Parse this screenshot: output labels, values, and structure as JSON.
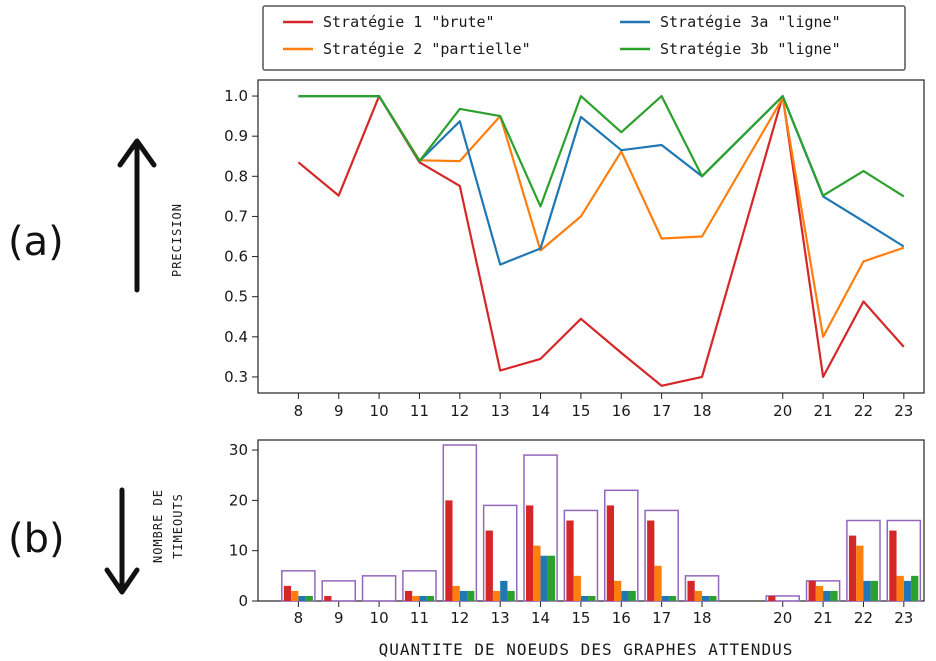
{
  "chart_data": [
    {
      "type": "line",
      "panel_label": "(a)",
      "ylabel": "PRECISION",
      "ylim": [
        0.26,
        1.04
      ],
      "yticks": [
        "0.3",
        "0.4",
        "0.5",
        "0.6",
        "0.7",
        "0.8",
        "0.9",
        "1.0"
      ],
      "x": [
        8,
        9,
        10,
        11,
        12,
        13,
        14,
        15,
        16,
        17,
        18,
        20,
        21,
        22,
        23
      ],
      "xlim": [
        7.0,
        23.5
      ],
      "grid": false,
      "legend_position": "top (above plot, two columns)",
      "series": [
        {
          "name": "Stratégie 1 \"brute\"",
          "color": "#d62728",
          "values": [
            0.835,
            0.752,
            1.0,
            0.835,
            0.776,
            0.316,
            0.345,
            0.445,
            0.36,
            0.278,
            0.3,
            1.0,
            0.3,
            0.488,
            0.375
          ]
        },
        {
          "name": "Stratégie 2 \"partielle\"",
          "color": "#ff7f0e",
          "values": [
            null,
            null,
            1.0,
            0.84,
            0.838,
            0.95,
            0.615,
            0.7,
            0.862,
            0.645,
            0.65,
            0.995,
            0.4,
            0.588,
            0.622
          ]
        },
        {
          "name": "Stratégie 3a \"ligne\"",
          "color": "#1f77b4",
          "values": [
            1.0,
            1.0,
            1.0,
            0.838,
            0.937,
            0.58,
            0.62,
            0.948,
            0.865,
            0.878,
            0.8,
            1.0,
            0.75,
            0.688,
            0.625
          ]
        },
        {
          "name": "Stratégie 3b \"ligne\"",
          "color": "#2ca02c",
          "values": [
            1.0,
            1.0,
            1.0,
            0.838,
            0.968,
            0.95,
            0.725,
            1.0,
            0.91,
            1.0,
            0.8,
            1.0,
            0.752,
            0.813,
            0.75
          ]
        }
      ]
    },
    {
      "type": "bar",
      "panel_label": "(b)",
      "ylabel": "NOMBRE DE TIMEOUTS",
      "xlabel": "QUANTITE DE NOEUDS DES GRAPHES ATTENDUS",
      "ylim": [
        0,
        32
      ],
      "yticks": [
        "0",
        "10",
        "20",
        "30"
      ],
      "categories": [
        "8",
        "9",
        "10",
        "11",
        "12",
        "13",
        "14",
        "15",
        "16",
        "17",
        "18",
        "20",
        "21",
        "22",
        "23"
      ],
      "x": [
        8,
        9,
        10,
        11,
        12,
        13,
        14,
        15,
        16,
        17,
        18,
        20,
        21,
        22,
        23
      ],
      "xlim": [
        7.0,
        23.5
      ],
      "total_outline_color": "#9467bd",
      "totals": [
        6,
        4,
        5,
        6,
        31,
        19,
        29,
        18,
        22,
        18,
        5,
        1,
        4,
        16,
        16
      ],
      "series": [
        {
          "name": "Stratégie 1 \"brute\"",
          "color": "#d62728",
          "values": [
            3,
            1,
            0,
            2,
            20,
            14,
            19,
            16,
            19,
            16,
            4,
            1,
            4,
            13,
            14
          ]
        },
        {
          "name": "Stratégie 2 \"partielle\"",
          "color": "#ff7f0e",
          "values": [
            2,
            0,
            0,
            1,
            3,
            2,
            11,
            5,
            4,
            7,
            2,
            0,
            3,
            11,
            5
          ]
        },
        {
          "name": "Stratégie 3a \"ligne\"",
          "color": "#1f77b4",
          "values": [
            1,
            0,
            0,
            1,
            2,
            4,
            9,
            1,
            2,
            1,
            1,
            0,
            2,
            4,
            4
          ]
        },
        {
          "name": "Stratégie 3b \"ligne\"",
          "color": "#2ca02c",
          "values": [
            1,
            0,
            0,
            1,
            2,
            2,
            9,
            1,
            2,
            1,
            1,
            0,
            2,
            4,
            5
          ]
        }
      ]
    }
  ]
}
